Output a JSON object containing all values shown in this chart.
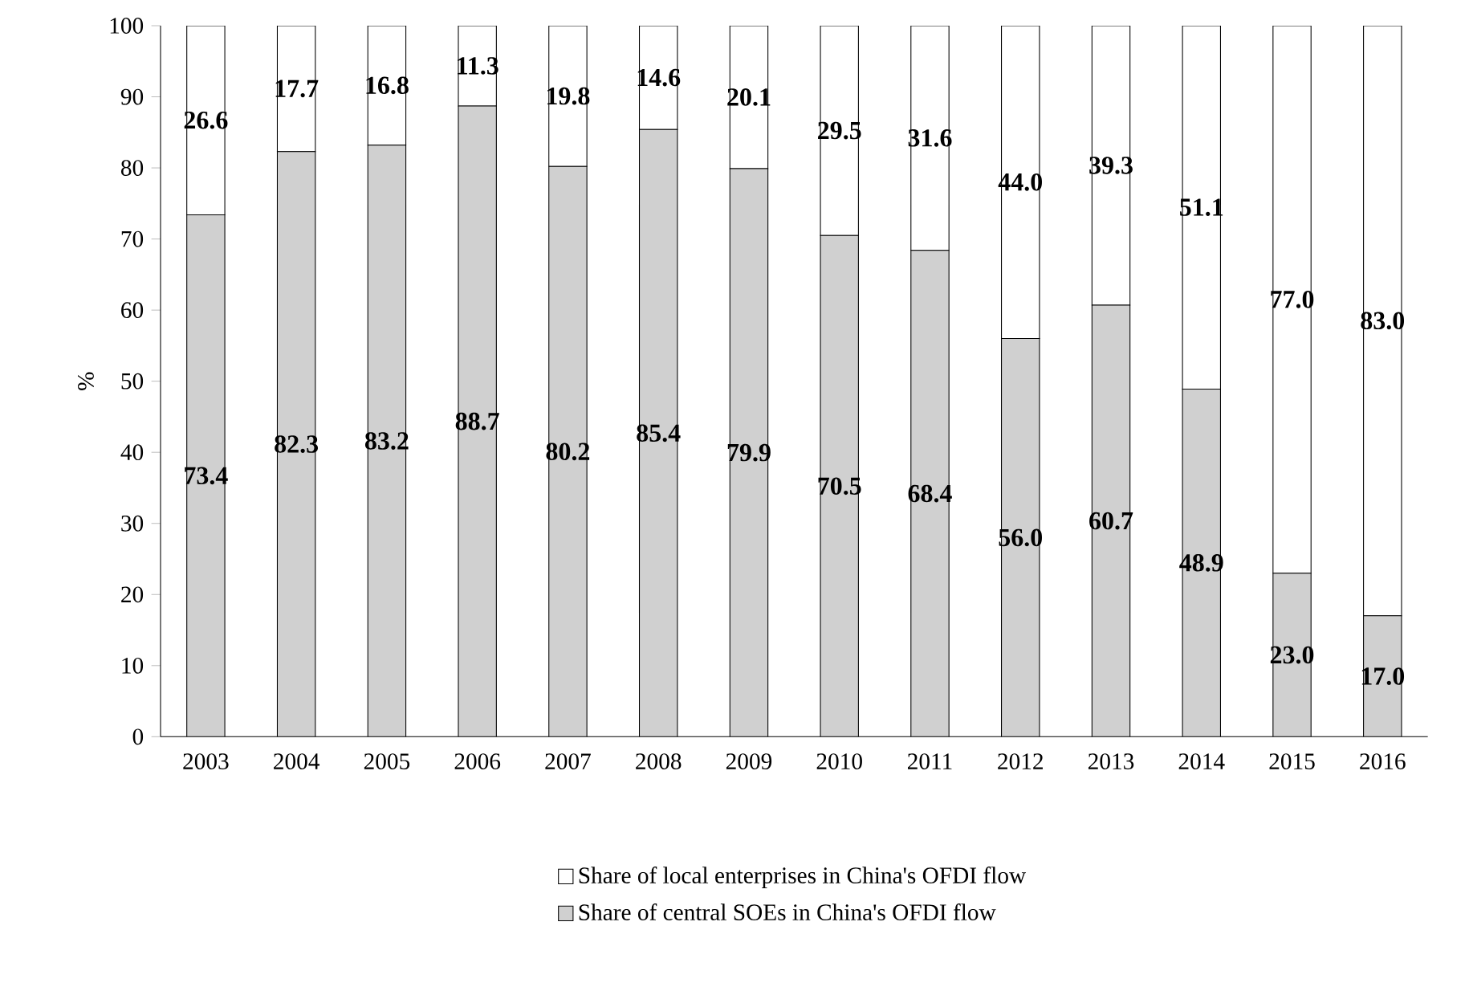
{
  "chart_data": {
    "type": "bar",
    "stacked": true,
    "ylabel": "%",
    "categories": [
      "2003",
      "2004",
      "2005",
      "2006",
      "2007",
      "2008",
      "2009",
      "2010",
      "2011",
      "2012",
      "2013",
      "2014",
      "2015",
      "2016"
    ],
    "series": [
      {
        "name": "Share of central SOEs in China's OFDI flow",
        "color": "#d0d0d0",
        "values": [
          73.4,
          82.3,
          83.2,
          88.7,
          80.2,
          85.4,
          79.9,
          70.5,
          68.4,
          56.0,
          60.7,
          48.9,
          23.0,
          17.0
        ],
        "value_labels": [
          "73.4",
          "82.3",
          "83.2",
          "88.7",
          "80.2",
          "85.4",
          "79.9",
          "70.5",
          "68.4",
          "56.0",
          "60.7",
          "48.9",
          "23.0",
          "17.0"
        ]
      },
      {
        "name": "Share of local enterprises in China's OFDI flow",
        "color": "#ffffff",
        "values": [
          26.6,
          17.7,
          16.8,
          11.3,
          19.8,
          14.6,
          20.1,
          29.5,
          31.6,
          44.0,
          39.3,
          51.1,
          77.0,
          83.0
        ],
        "value_labels": [
          "26.6",
          "17.7",
          "16.8",
          "11.3",
          "19.8",
          "14.6",
          "20.1",
          "29.5",
          "31.6",
          "44.0",
          "39.3",
          "51.1",
          "77.0",
          "83.0"
        ]
      }
    ],
    "ylim": [
      0,
      100
    ],
    "yticks": [
      0,
      10,
      20,
      30,
      40,
      50,
      60,
      70,
      80,
      90,
      100
    ],
    "legend": "bottom"
  }
}
